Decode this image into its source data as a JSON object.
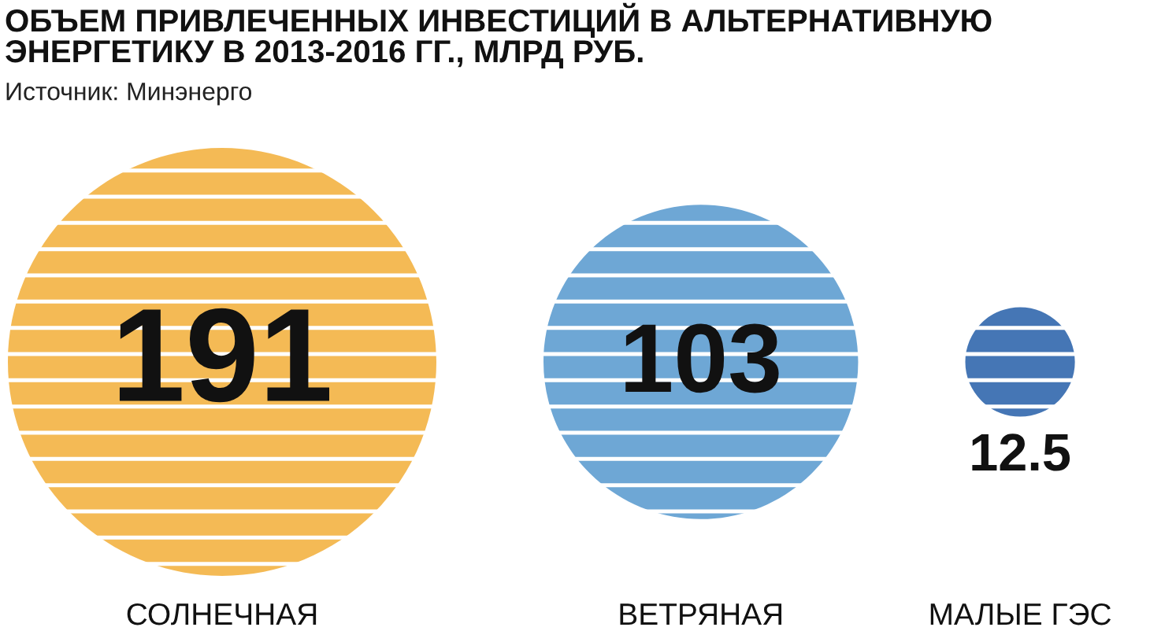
{
  "chart_data": {
    "type": "other",
    "title": "ОБЪЕМ ПРИВЛЕЧЕННЫХ ИНВЕСТИЦИЙ В АЛЬТЕРНАТИВНУЮ\nЭНЕРГЕТИКУ В 2013-2016 ГГ., МЛРД РУБ.",
    "annotations": [
      "Источник: Минэнерго"
    ],
    "categories": [
      "СОЛНЕЧНАЯ",
      "ВЕТРЯНАЯ",
      "МАЛЫЕ ГЭС"
    ],
    "values": [
      191,
      103,
      12.5
    ],
    "colors": [
      "#f4ba55",
      "#6ea7d5",
      "#4576b5"
    ],
    "data_labels": true
  }
}
